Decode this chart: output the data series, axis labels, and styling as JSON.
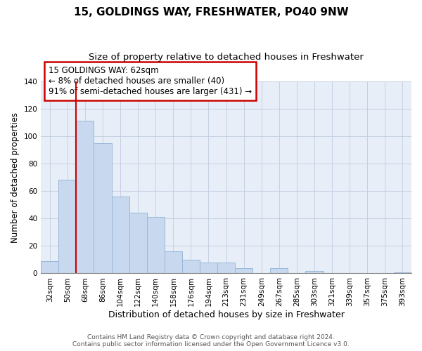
{
  "title": "15, GOLDINGS WAY, FRESHWATER, PO40 9NW",
  "subtitle": "Size of property relative to detached houses in Freshwater",
  "xlabel": "Distribution of detached houses by size in Freshwater",
  "ylabel": "Number of detached properties",
  "categories": [
    "32sqm",
    "50sqm",
    "68sqm",
    "86sqm",
    "104sqm",
    "122sqm",
    "140sqm",
    "158sqm",
    "176sqm",
    "194sqm",
    "213sqm",
    "231sqm",
    "249sqm",
    "267sqm",
    "285sqm",
    "303sqm",
    "321sqm",
    "339sqm",
    "357sqm",
    "375sqm",
    "393sqm"
  ],
  "values": [
    9,
    68,
    111,
    95,
    56,
    44,
    41,
    16,
    10,
    8,
    8,
    4,
    0,
    4,
    0,
    2,
    0,
    0,
    0,
    0,
    1
  ],
  "bar_color": "#c8d8ee",
  "bar_edge_color": "#9ab8d8",
  "property_line_x": 1.5,
  "property_line_color": "#cc0000",
  "ylim": [
    0,
    140
  ],
  "yticks": [
    0,
    20,
    40,
    60,
    80,
    100,
    120,
    140
  ],
  "plot_bg_color": "#e8eef8",
  "annotation_line1": "15 GOLDINGS WAY: 62sqm",
  "annotation_line2": "← 8% of detached houses are smaller (40)",
  "annotation_line3": "91% of semi-detached houses are larger (431) →",
  "annotation_box_edge": "#cc0000",
  "footer_line1": "Contains HM Land Registry data © Crown copyright and database right 2024.",
  "footer_line2": "Contains public sector information licensed under the Open Government Licence v3.0.",
  "title_fontsize": 11,
  "subtitle_fontsize": 9.5,
  "xlabel_fontsize": 9,
  "ylabel_fontsize": 8.5,
  "tick_fontsize": 7.5,
  "annot_fontsize": 8.5,
  "footer_fontsize": 6.5
}
